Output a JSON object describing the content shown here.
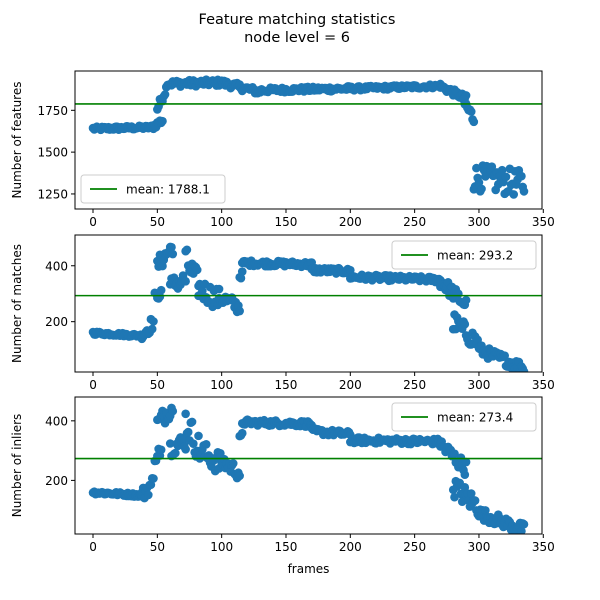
{
  "figure": {
    "suptitle_line1": "Feature matching statistics",
    "suptitle_line2": "node level = 6"
  },
  "chart_data": [
    {
      "type": "scatter",
      "title": "",
      "xlabel": "",
      "ylabel": "Number of features",
      "xlim": [
        -14,
        349
      ],
      "ylim": [
        1160,
        1985
      ],
      "xticks": [
        0,
        50,
        100,
        150,
        200,
        250,
        300,
        350
      ],
      "yticks": [
        1250,
        1500,
        1750
      ],
      "marker_color": "#1f77b4",
      "mean_line": {
        "value": 1788.1,
        "color": "#008000",
        "label": "mean: 1788.1"
      },
      "legend_position": "lower-left",
      "segments": [
        {
          "x": [
            0,
            45
          ],
          "y_start": 1640,
          "y_end": 1648,
          "jitter": 12
        },
        {
          "x": [
            46,
            54
          ],
          "y_start": 1650,
          "y_end": 1690,
          "jitter": 20
        },
        {
          "x": [
            50,
            57
          ],
          "y_start": 1760,
          "y_end": 1880,
          "jitter": 25
        },
        {
          "x": [
            57,
            100
          ],
          "y_start": 1910,
          "y_end": 1915,
          "jitter": 20
        },
        {
          "x": [
            100,
            130
          ],
          "y_start": 1915,
          "y_end": 1860,
          "jitter": 20
        },
        {
          "x": [
            130,
            200
          ],
          "y_start": 1870,
          "y_end": 1880,
          "jitter": 15
        },
        {
          "x": [
            200,
            270
          ],
          "y_start": 1880,
          "y_end": 1895,
          "jitter": 12
        },
        {
          "x": [
            270,
            290
          ],
          "y_start": 1895,
          "y_end": 1820,
          "jitter": 20
        },
        {
          "x": [
            288,
            296
          ],
          "y_start": 1800,
          "y_end": 1700,
          "jitter": 40
        },
        {
          "x": [
            296,
            335
          ],
          "y_start": 1350,
          "y_end": 1310,
          "jitter": 80
        }
      ]
    },
    {
      "type": "scatter",
      "title": "",
      "xlabel": "",
      "ylabel": "Number of matches",
      "xlim": [
        -14,
        349
      ],
      "ylim": [
        20,
        510
      ],
      "xticks": [
        0,
        50,
        100,
        150,
        200,
        250,
        300,
        350
      ],
      "yticks": [
        200,
        400
      ],
      "marker_color": "#1f77b4",
      "mean_line": {
        "value": 293.2,
        "color": "#008000",
        "label": "mean: 293.2"
      },
      "legend_position": "upper-right",
      "segments": [
        {
          "x": [
            0,
            38
          ],
          "y_start": 160,
          "y_end": 150,
          "jitter": 6
        },
        {
          "x": [
            38,
            47
          ],
          "y_start": 150,
          "y_end": 200,
          "jitter": 25
        },
        {
          "x": [
            48,
            53
          ],
          "y_start": 290,
          "y_end": 300,
          "jitter": 15
        },
        {
          "x": [
            50,
            62
          ],
          "y_start": 400,
          "y_end": 470,
          "jitter": 30
        },
        {
          "x": [
            60,
            72
          ],
          "y_start": 330,
          "y_end": 350,
          "jitter": 30
        },
        {
          "x": [
            72,
            82
          ],
          "y_start": 420,
          "y_end": 330,
          "jitter": 50
        },
        {
          "x": [
            82,
            98
          ],
          "y_start": 320,
          "y_end": 280,
          "jitter": 40
        },
        {
          "x": [
            98,
            114
          ],
          "y_start": 290,
          "y_end": 250,
          "jitter": 25
        },
        {
          "x": [
            114,
            116
          ],
          "y_start": 360,
          "y_end": 370,
          "jitter": 10
        },
        {
          "x": [
            116,
            170
          ],
          "y_start": 410,
          "y_end": 405,
          "jitter": 10
        },
        {
          "x": [
            170,
            200
          ],
          "y_start": 385,
          "y_end": 380,
          "jitter": 10
        },
        {
          "x": [
            200,
            270
          ],
          "y_start": 360,
          "y_end": 350,
          "jitter": 10
        },
        {
          "x": [
            270,
            290
          ],
          "y_start": 345,
          "y_end": 260,
          "jitter": 25
        },
        {
          "x": [
            280,
            300
          ],
          "y_start": 200,
          "y_end": 120,
          "jitter": 35
        },
        {
          "x": [
            300,
            335
          ],
          "y_start": 100,
          "y_end": 35,
          "jitter": 20
        }
      ]
    },
    {
      "type": "scatter",
      "title": "",
      "xlabel": "frames",
      "ylabel": "Number of inliers",
      "xlim": [
        -14,
        349
      ],
      "ylim": [
        20,
        480
      ],
      "xticks": [
        0,
        50,
        100,
        150,
        200,
        250,
        300,
        350
      ],
      "yticks": [
        200,
        400
      ],
      "marker_color": "#1f77b4",
      "mean_line": {
        "value": 273.4,
        "color": "#008000",
        "label": "mean: 273.4"
      },
      "legend_position": "upper-right",
      "segments": [
        {
          "x": [
            0,
            38
          ],
          "y_start": 160,
          "y_end": 150,
          "jitter": 6
        },
        {
          "x": [
            38,
            47
          ],
          "y_start": 150,
          "y_end": 195,
          "jitter": 25
        },
        {
          "x": [
            48,
            53
          ],
          "y_start": 280,
          "y_end": 300,
          "jitter": 20
        },
        {
          "x": [
            50,
            62
          ],
          "y_start": 390,
          "y_end": 450,
          "jitter": 30
        },
        {
          "x": [
            60,
            72
          ],
          "y_start": 310,
          "y_end": 330,
          "jitter": 30
        },
        {
          "x": [
            72,
            82
          ],
          "y_start": 400,
          "y_end": 310,
          "jitter": 50
        },
        {
          "x": [
            82,
            98
          ],
          "y_start": 300,
          "y_end": 260,
          "jitter": 40
        },
        {
          "x": [
            98,
            114
          ],
          "y_start": 270,
          "y_end": 225,
          "jitter": 25
        },
        {
          "x": [
            114,
            116
          ],
          "y_start": 340,
          "y_end": 350,
          "jitter": 10
        },
        {
          "x": [
            116,
            170
          ],
          "y_start": 395,
          "y_end": 390,
          "jitter": 10
        },
        {
          "x": [
            170,
            200
          ],
          "y_start": 365,
          "y_end": 355,
          "jitter": 10
        },
        {
          "x": [
            200,
            270
          ],
          "y_start": 335,
          "y_end": 330,
          "jitter": 10
        },
        {
          "x": [
            270,
            290
          ],
          "y_start": 320,
          "y_end": 240,
          "jitter": 25
        },
        {
          "x": [
            280,
            300
          ],
          "y_start": 180,
          "y_end": 110,
          "jitter": 35
        },
        {
          "x": [
            300,
            335
          ],
          "y_start": 90,
          "y_end": 35,
          "jitter": 20
        }
      ]
    }
  ]
}
